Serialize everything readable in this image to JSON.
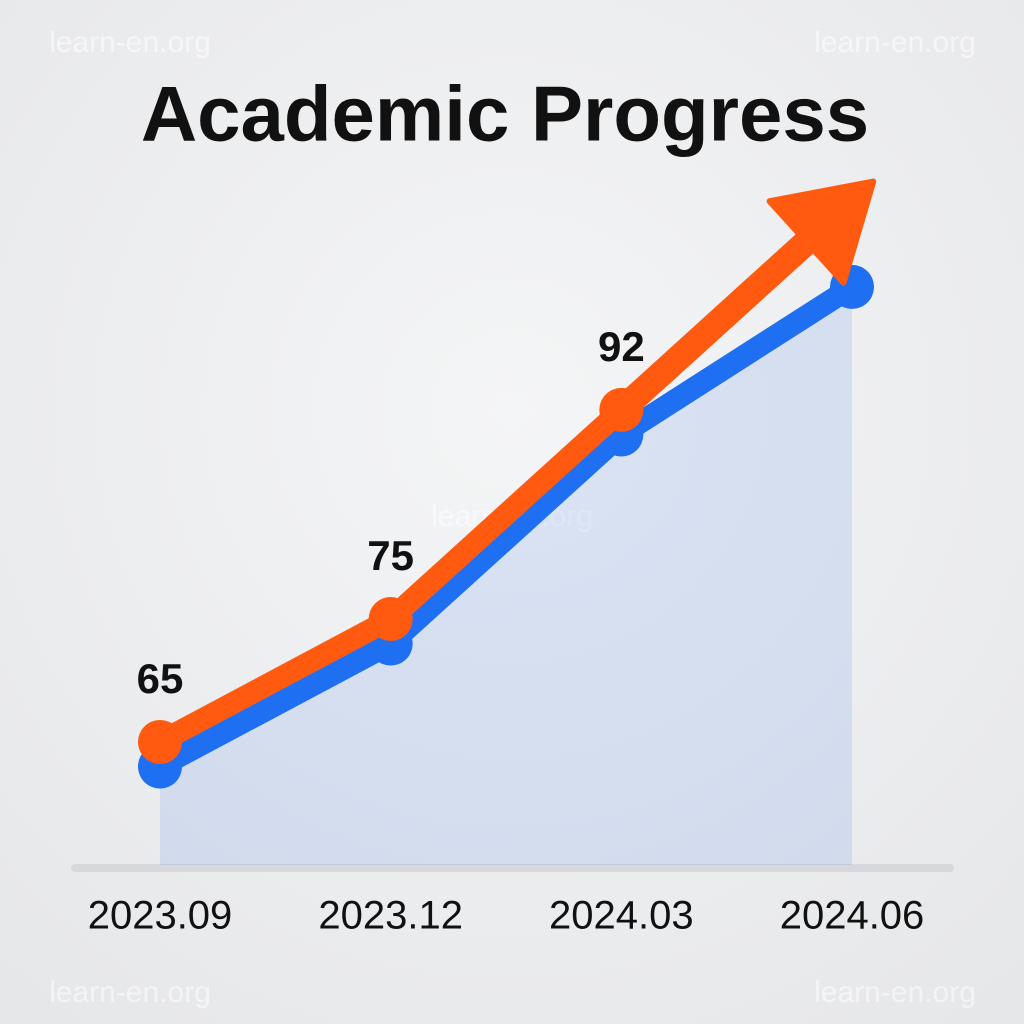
{
  "chart_data": {
    "type": "line",
    "title": "Academic Progress",
    "watermark": "learn-en.org",
    "categories": [
      "2023.09",
      "2023.12",
      "2024.03",
      "2024.06"
    ],
    "series": [
      {
        "color": "#1f6ff2",
        "values": [
          63,
          73,
          90,
          102
        ],
        "area": true
      },
      {
        "color": "#ff5a10",
        "values": [
          65,
          75,
          92,
          null
        ],
        "labels": true,
        "arrow": true
      }
    ],
    "ylim": [
      55,
      105
    ]
  }
}
